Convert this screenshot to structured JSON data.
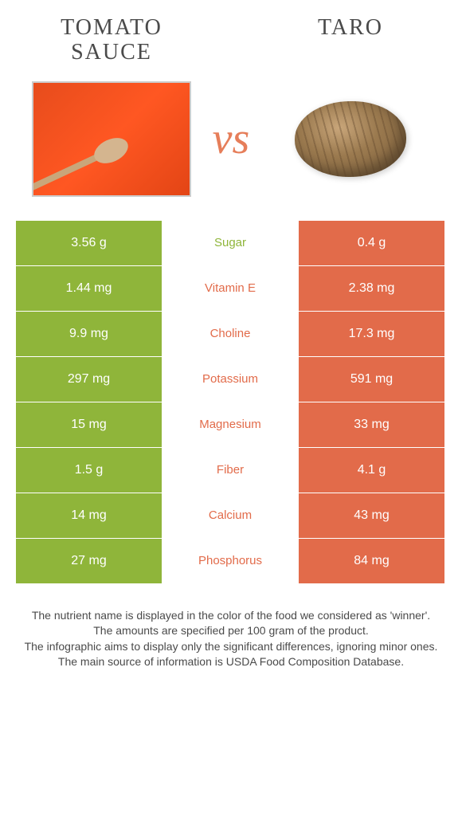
{
  "food_left": {
    "name": "Tomato sauce",
    "color": "#8fb53a"
  },
  "food_right": {
    "name": "Taro",
    "color": "#e26b4a"
  },
  "vs_label": "vs",
  "colors": {
    "left_bg": "#8fb53a",
    "right_bg": "#e26b4a",
    "mid_bg": "#ffffff",
    "text_white": "#ffffff"
  },
  "rows": [
    {
      "left": "3.56 g",
      "label": "Sugar",
      "right": "0.4 g",
      "winner": "left"
    },
    {
      "left": "1.44 mg",
      "label": "Vitamin E",
      "right": "2.38 mg",
      "winner": "right"
    },
    {
      "left": "9.9 mg",
      "label": "Choline",
      "right": "17.3 mg",
      "winner": "right"
    },
    {
      "left": "297 mg",
      "label": "Potassium",
      "right": "591 mg",
      "winner": "right"
    },
    {
      "left": "15 mg",
      "label": "Magnesium",
      "right": "33 mg",
      "winner": "right"
    },
    {
      "left": "1.5 g",
      "label": "Fiber",
      "right": "4.1 g",
      "winner": "right"
    },
    {
      "left": "14 mg",
      "label": "Calcium",
      "right": "43 mg",
      "winner": "right"
    },
    {
      "left": "27 mg",
      "label": "Phosphorus",
      "right": "84 mg",
      "winner": "right"
    }
  ],
  "footer": {
    "line1": "The nutrient name is displayed in the color of the food we considered as 'winner'.",
    "line2": "The amounts are specified per 100 gram of the product.",
    "line3": "The infographic aims to display only the significant differences, ignoring minor ones.",
    "line4": "The main source of information is USDA Food Composition Database."
  }
}
